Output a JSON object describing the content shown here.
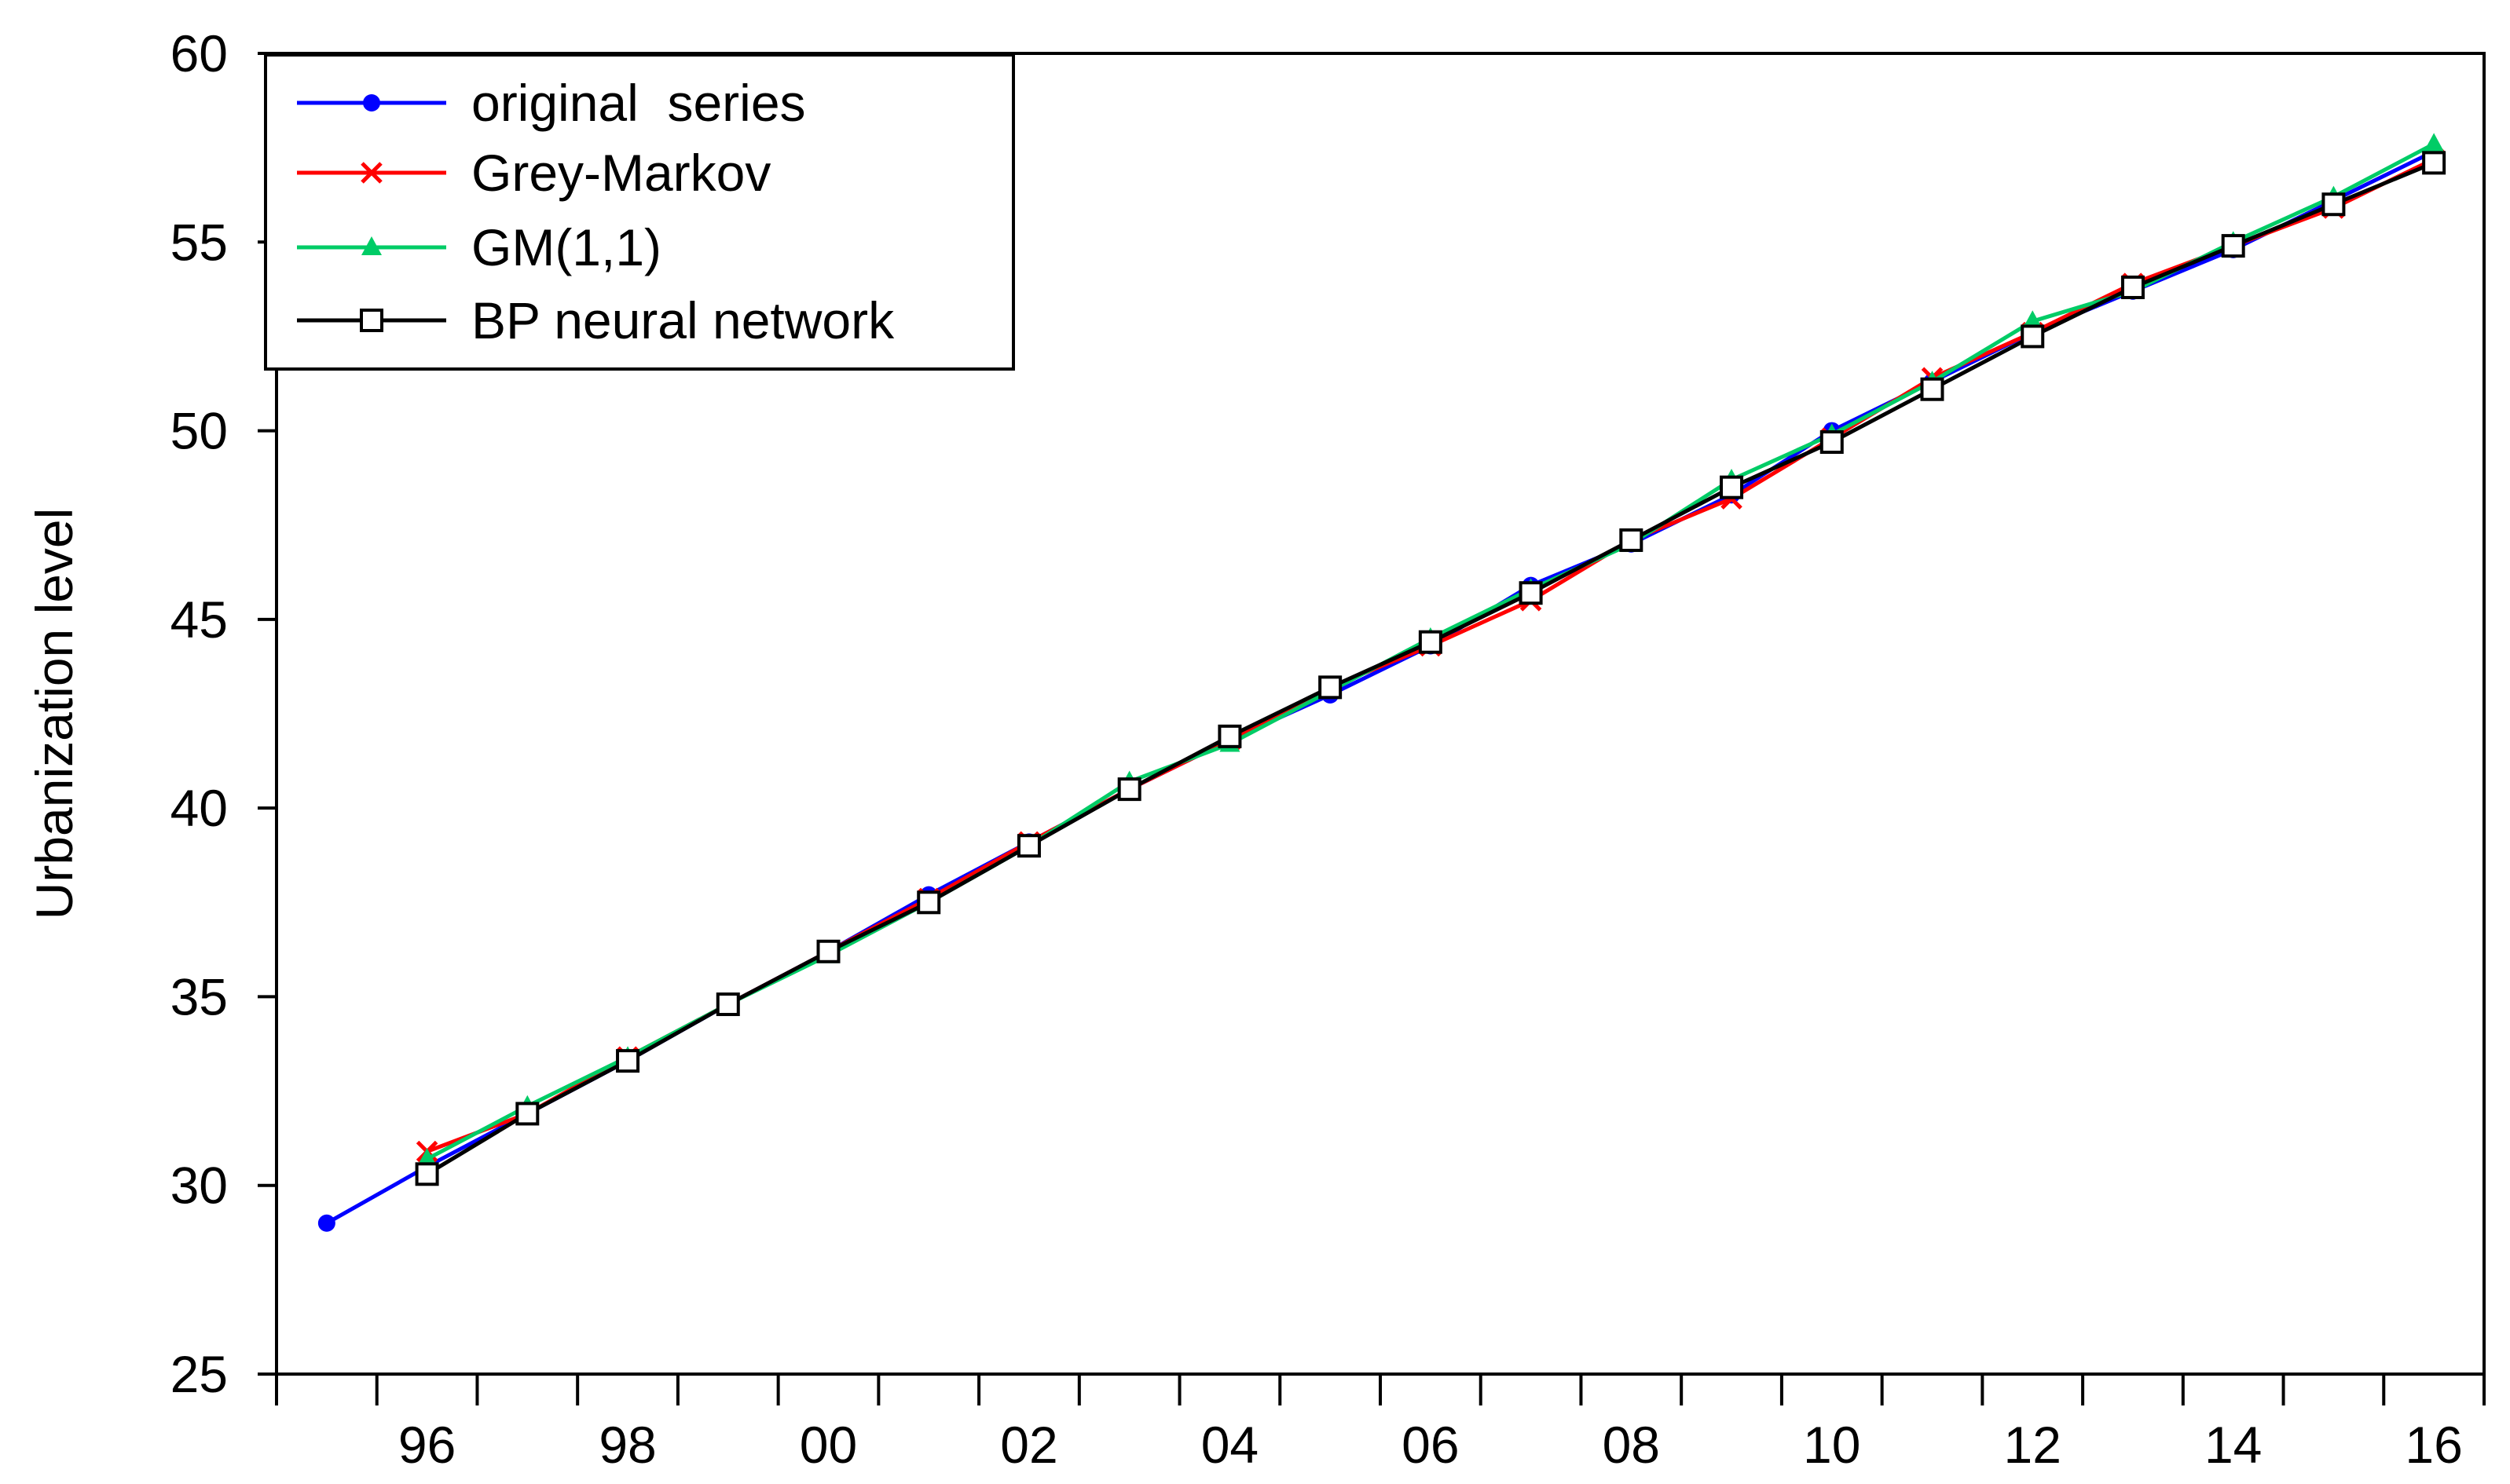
{
  "chart_data": {
    "type": "line",
    "title": "",
    "xlabel": "",
    "ylabel": "Urbanization level",
    "xlim": [
      1994.5,
      2016.5
    ],
    "ylim": [
      25,
      60
    ],
    "yticks": [
      25,
      30,
      35,
      40,
      45,
      50,
      55,
      60
    ],
    "xtick_labels": [
      {
        "year": 1996,
        "label": "96"
      },
      {
        "year": 1998,
        "label": "98"
      },
      {
        "year": 2000,
        "label": "00"
      },
      {
        "year": 2002,
        "label": "02"
      },
      {
        "year": 2004,
        "label": "04"
      },
      {
        "year": 2006,
        "label": "06"
      },
      {
        "year": 2008,
        "label": "08"
      },
      {
        "year": 2010,
        "label": "10"
      },
      {
        "year": 2012,
        "label": "12"
      },
      {
        "year": 2014,
        "label": "14"
      },
      {
        "year": 2016,
        "label": "16"
      }
    ],
    "grid": false,
    "legend_position": "top-left",
    "series": [
      {
        "name": "original  series",
        "color": "#0000ff",
        "marker": "circle",
        "x": [
          1995,
          1996,
          1997,
          1998,
          1999,
          2000,
          2001,
          2002,
          2003,
          2004,
          2005,
          2006,
          2007,
          2008,
          2009,
          2010,
          2011,
          2012,
          2013,
          2014,
          2015,
          2016
        ],
        "y": [
          29.0,
          30.5,
          31.9,
          33.3,
          34.8,
          36.2,
          37.7,
          39.1,
          40.5,
          41.8,
          43.0,
          44.3,
          45.9,
          47.0,
          48.3,
          50.0,
          51.3,
          52.6,
          53.7,
          54.8,
          56.1,
          57.4
        ]
      },
      {
        "name": "Grey-Markov",
        "color": "#ff0000",
        "marker": "x",
        "x": [
          1996,
          1997,
          1998,
          1999,
          2000,
          2001,
          2002,
          2003,
          2004,
          2005,
          2006,
          2007,
          2008,
          2009,
          2010,
          2011,
          2012,
          2013,
          2014,
          2015,
          2016
        ],
        "y": [
          30.9,
          31.9,
          33.4,
          34.8,
          36.2,
          37.6,
          39.1,
          40.5,
          41.8,
          43.2,
          44.3,
          45.5,
          47.1,
          48.2,
          49.8,
          51.4,
          52.6,
          53.9,
          54.9,
          55.9,
          57.2
        ]
      },
      {
        "name": "GM(1,1)",
        "color": "#00cc66",
        "marker": "triangle",
        "x": [
          1996,
          1997,
          1998,
          1999,
          2000,
          2001,
          2002,
          2003,
          2004,
          2005,
          2006,
          2007,
          2008,
          2009,
          2010,
          2011,
          2012,
          2013,
          2014,
          2015,
          2016
        ],
        "y": [
          30.7,
          32.1,
          33.4,
          34.8,
          36.1,
          37.5,
          39.0,
          40.7,
          41.7,
          43.1,
          44.5,
          45.8,
          47.0,
          48.7,
          49.9,
          51.3,
          52.9,
          53.7,
          55.0,
          56.2,
          57.6
        ]
      },
      {
        "name": "BP neural network",
        "color": "#000000",
        "marker": "square",
        "x": [
          1996,
          1997,
          1998,
          1999,
          2000,
          2001,
          2002,
          2003,
          2004,
          2005,
          2006,
          2007,
          2008,
          2009,
          2010,
          2011,
          2012,
          2013,
          2014,
          2015,
          2016
        ],
        "y": [
          30.3,
          31.9,
          33.3,
          34.8,
          36.2,
          37.5,
          39.0,
          40.5,
          41.9,
          43.2,
          44.4,
          45.7,
          47.1,
          48.5,
          49.7,
          51.1,
          52.5,
          53.8,
          54.9,
          56.0,
          57.1
        ]
      }
    ]
  }
}
